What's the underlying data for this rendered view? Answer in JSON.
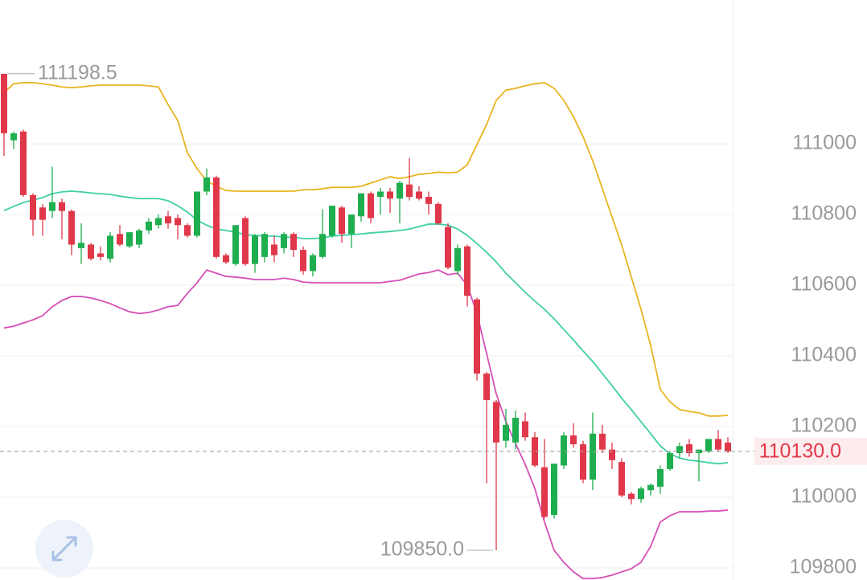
{
  "chart_data": {
    "type": "candlestick",
    "ylim": [
      109766,
      111407
    ],
    "yticks": [
      109800,
      110000,
      110200,
      110400,
      110600,
      110800,
      111000
    ],
    "grid": true,
    "up_color": "#1fae4f",
    "down_color": "#e0384a",
    "open": [
      111198,
      111010,
      111035,
      110855,
      110820,
      110810,
      110835,
      110810,
      110705,
      110715,
      110690,
      110675,
      110745,
      110710,
      110715,
      110755,
      110770,
      110795,
      110790,
      110770,
      110740,
      110865,
      110905,
      110685,
      110660,
      110790,
      110660,
      110680,
      110715,
      110705,
      110745,
      110700,
      110640,
      110680,
      110740,
      110820,
      110745,
      110795,
      110860,
      110850,
      110865,
      110845,
      110885,
      110865,
      110850,
      110830,
      110765,
      110640,
      110710,
      110560,
      110350,
      110270,
      110160,
      110155,
      110215,
      110170,
      110085,
      109950,
      110090,
      110175,
      110150,
      110050,
      110180,
      110135,
      110100,
      110010,
      109995,
      110020,
      110030,
      110080,
      110125,
      110150,
      110125,
      110130,
      110165,
      110155
    ],
    "high": [
      111198.5,
      111035,
      111040,
      110860,
      110830,
      110935,
      110845,
      110815,
      110775,
      110720,
      110710,
      110750,
      110770,
      110750,
      110760,
      110790,
      110800,
      110810,
      110800,
      110775,
      110865,
      110930,
      110910,
      110690,
      110770,
      110795,
      110745,
      110750,
      110740,
      110750,
      110750,
      110710,
      110690,
      110815,
      110825,
      110825,
      110800,
      110860,
      110865,
      110875,
      110875,
      110895,
      110960,
      110880,
      110865,
      110835,
      110775,
      110715,
      110715,
      110565,
      110355,
      110275,
      110250,
      110245,
      110240,
      110185,
      110165,
      110095,
      110185,
      110210,
      110160,
      110240,
      110205,
      110155,
      110110,
      110015,
      110030,
      110040,
      110090,
      110130,
      110155,
      110165,
      110135,
      110165,
      110190,
      110170
    ],
    "low": [
      110966,
      110985,
      110850,
      110740,
      110740,
      110790,
      110730,
      110685,
      110660,
      110670,
      110670,
      110665,
      110710,
      110705,
      110705,
      110745,
      110760,
      110760,
      110730,
      110735,
      110735,
      110855,
      110675,
      110660,
      110655,
      110655,
      110635,
      110665,
      110665,
      110690,
      110680,
      110630,
      110625,
      110675,
      110735,
      110720,
      110705,
      110780,
      110775,
      110800,
      110805,
      110775,
      110840,
      110840,
      110800,
      110770,
      110645,
      110630,
      110540,
      110330,
      110040,
      109850,
      110140,
      110135,
      110160,
      110085,
      109940,
      109940,
      110080,
      110140,
      110040,
      110020,
      110125,
      110080,
      110000,
      109980,
      109985,
      110005,
      110010,
      110075,
      110110,
      110115,
      110045,
      110125,
      110130,
      110125
    ],
    "close": [
      111030,
      111030,
      110855,
      110785,
      110785,
      110835,
      110810,
      110715,
      110720,
      110675,
      110680,
      110740,
      110715,
      110750,
      110755,
      110780,
      110790,
      110775,
      110770,
      110740,
      110865,
      110905,
      110680,
      110665,
      110770,
      110660,
      110740,
      110745,
      110685,
      110745,
      110700,
      110640,
      110685,
      110745,
      110825,
      110745,
      110800,
      110860,
      110790,
      110865,
      110845,
      110890,
      110850,
      110845,
      110830,
      110775,
      110650,
      110705,
      110570,
      110350,
      110275,
      110155,
      110205,
      110225,
      110170,
      110090,
      109945,
      110095,
      110175,
      110150,
      110050,
      110180,
      110135,
      110105,
      110005,
      109995,
      110025,
      110035,
      110080,
      110125,
      110145,
      110125,
      110135,
      110165,
      110135,
      110130
    ],
    "lines": [
      {
        "color": "#e9b421",
        "values": [
          111145,
          111170,
          111173,
          111173,
          111170,
          111166,
          111161,
          111159,
          111161,
          111164,
          111166,
          111166,
          111166,
          111166,
          111166,
          111164,
          111161,
          111111,
          111066,
          110975,
          110930,
          110895,
          110880,
          110868,
          110866,
          110866,
          110866,
          110866,
          110866,
          110866,
          110866,
          110870,
          110870,
          110873,
          110877,
          110877,
          110877,
          110880,
          110889,
          110898,
          110907,
          110902,
          110907,
          110914,
          110916,
          110920,
          110918,
          110920,
          110941,
          110998,
          111055,
          111123,
          111152,
          111157,
          111164,
          111170,
          111173,
          111157,
          111123,
          111077,
          111020,
          110952,
          110873,
          110793,
          110714,
          110623,
          110532,
          110430,
          110305,
          110270,
          110248,
          110243,
          110239,
          110230,
          110230,
          110232
        ]
      },
      {
        "color": "#3fcfa6",
        "values": [
          110811,
          110823,
          110834,
          110841,
          110848,
          110859,
          110864,
          110866,
          110864,
          110861,
          110859,
          110857,
          110852,
          110848,
          110845,
          110845,
          110845,
          110839,
          110825,
          110807,
          110784,
          110770,
          110759,
          110755,
          110750,
          110743,
          110741,
          110739,
          110739,
          110736,
          110736,
          110732,
          110732,
          110734,
          110739,
          110741,
          110743,
          110745,
          110748,
          110750,
          110752,
          110755,
          110759,
          110766,
          110773,
          110773,
          110770,
          110759,
          110741,
          110718,
          110693,
          110666,
          110634,
          110607,
          110580,
          110555,
          110532,
          110505,
          110475,
          110445,
          110414,
          110384,
          110350,
          110316,
          110280,
          110248,
          110214,
          110180,
          110145,
          110123,
          110111,
          110105,
          110102,
          110098,
          110095,
          110098
        ]
      },
      {
        "color": "#d64fb7",
        "values": [
          110479,
          110484,
          110493,
          110502,
          110514,
          110539,
          110557,
          110568,
          110568,
          110564,
          110557,
          110548,
          110536,
          110525,
          110520,
          110523,
          110530,
          110539,
          110543,
          110577,
          110607,
          110643,
          110634,
          110625,
          110623,
          110620,
          110616,
          110616,
          110616,
          110620,
          110616,
          110609,
          110607,
          110607,
          110607,
          110607,
          110607,
          110607,
          110607,
          110607,
          110611,
          110614,
          110623,
          110632,
          110636,
          110643,
          110630,
          110634,
          110600,
          110520,
          110407,
          110293,
          110214,
          110152,
          110093,
          110025,
          109930,
          109850,
          109816,
          109789,
          109770,
          109770,
          109773,
          109780,
          109789,
          109798,
          109816,
          109861,
          109930,
          109948,
          109959,
          109959,
          109959,
          109961,
          109961,
          109964
        ]
      }
    ],
    "max_marker": 111198.5,
    "min_marker": {
      "value": 109850,
      "label": "109850.0"
    },
    "last_price": {
      "value": 110130,
      "label": "110130.0"
    }
  }
}
